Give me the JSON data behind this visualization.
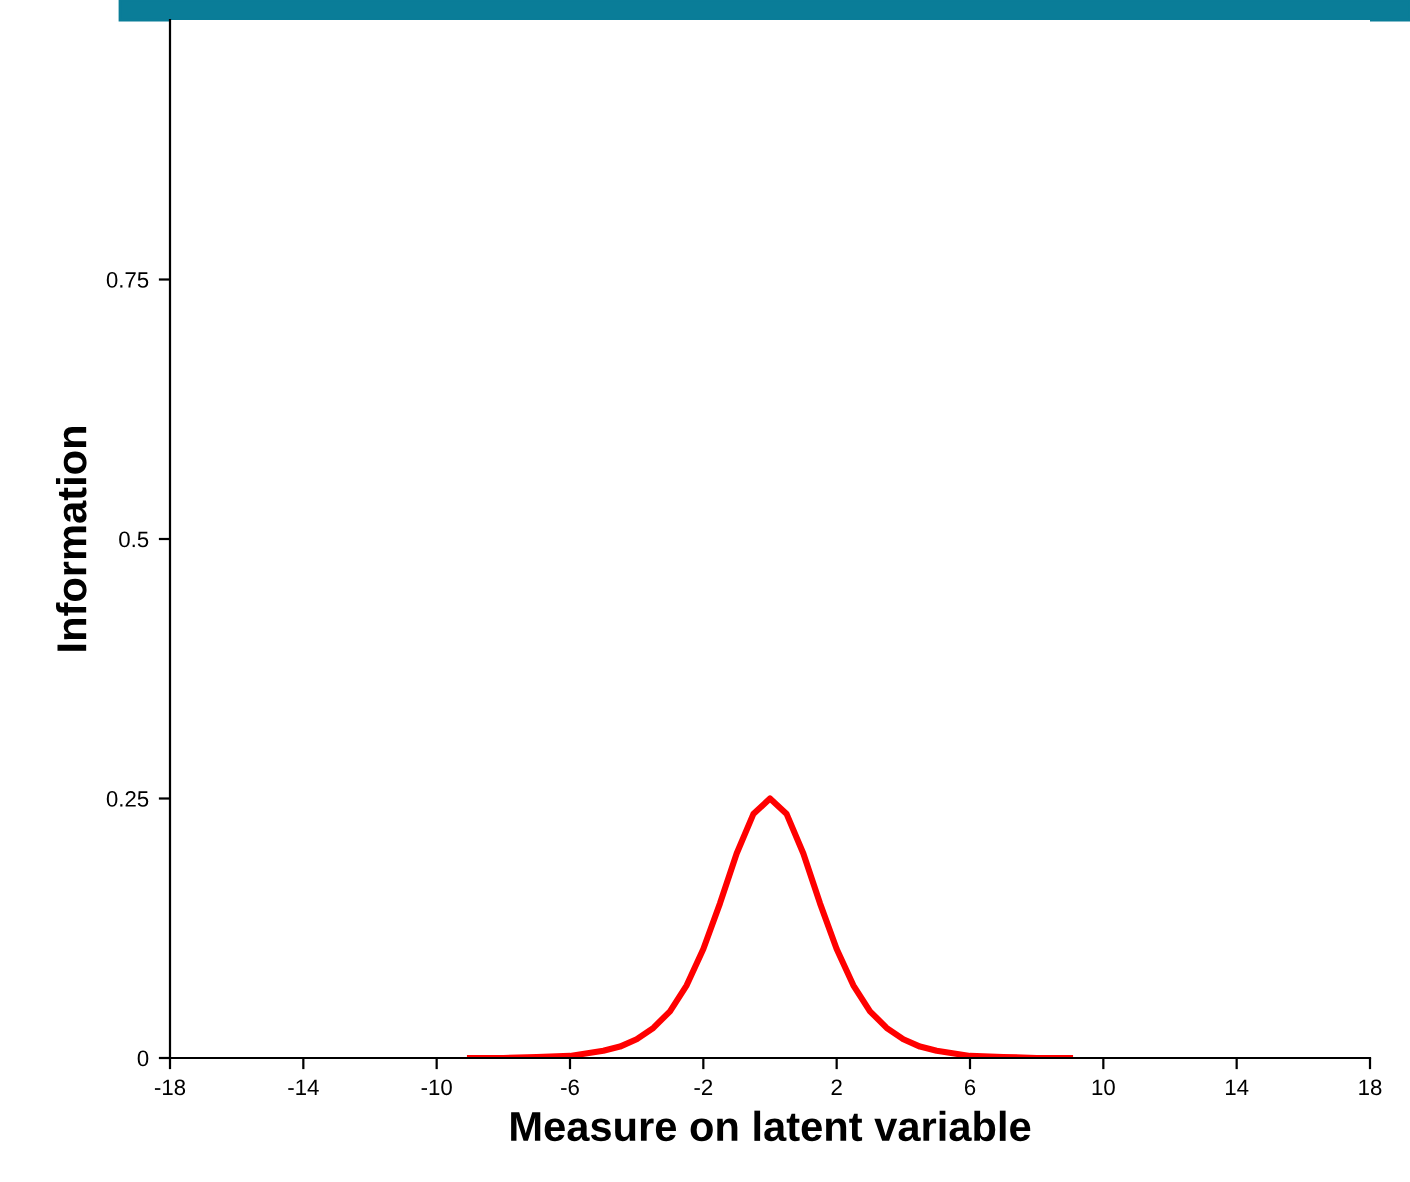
{
  "chart_data": {
    "type": "line",
    "xlabel": "Measure on latent variable",
    "ylabel": "Information",
    "x": [
      -9,
      -8,
      -7,
      -6,
      -5,
      -4.5,
      -4,
      -3.5,
      -3,
      -2.5,
      -2,
      -1.5,
      -1,
      -0.5,
      0,
      0.5,
      1,
      1.5,
      2,
      2.5,
      3,
      3.5,
      4,
      4.5,
      5,
      6,
      7,
      8,
      9
    ],
    "series": [
      {
        "color": "#ff0000",
        "values": [
          0,
          0,
          0.001,
          0.002,
          0.007,
          0.011,
          0.018,
          0.029,
          0.045,
          0.07,
          0.105,
          0.149,
          0.197,
          0.235,
          0.25,
          0.235,
          0.197,
          0.149,
          0.105,
          0.07,
          0.045,
          0.029,
          0.018,
          0.011,
          0.007,
          0.002,
          0.001,
          0,
          0
        ]
      }
    ],
    "xlim": [
      -18,
      18
    ],
    "xticks": [
      -18,
      -14,
      -10,
      -6,
      -2,
      2,
      6,
      10,
      14,
      18
    ],
    "ylim": [
      0,
      1
    ],
    "yticks": [
      0,
      0.25,
      0.5,
      0.75
    ],
    "grid": false,
    "legend": false,
    "marker": "none",
    "line_style": "solid"
  }
}
